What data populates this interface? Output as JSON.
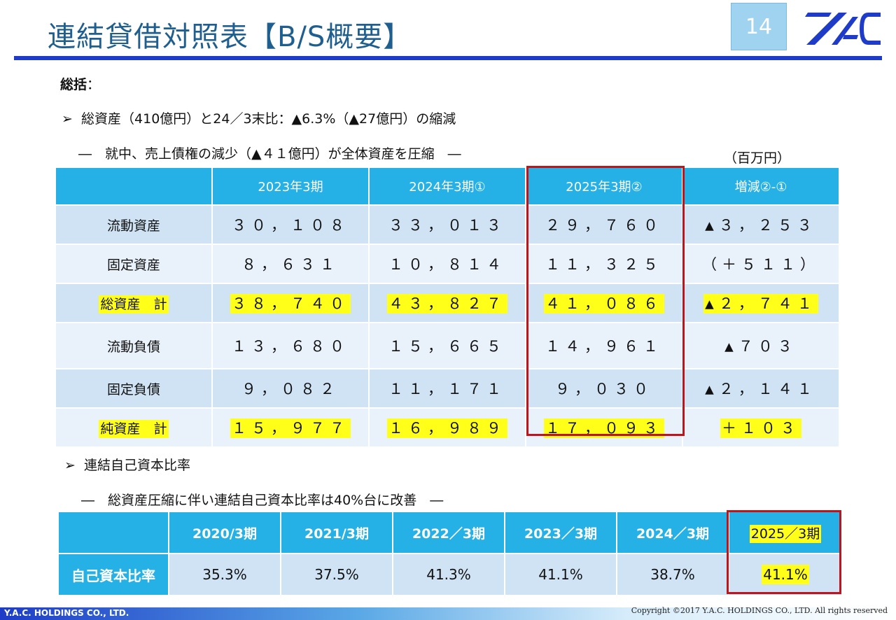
{
  "title": "連結貸借対照表【B/S概要】",
  "page_number": "14",
  "logo_icon": "yac-logo-icon",
  "summary": {
    "heading": "総括",
    "colon": "：",
    "bullet1": "総資産（410億円）と24／3末比：▲6.3%（▲27億円）の縮減",
    "sub1": "―　就中、売上債権の減少（▲４１億円）が全体資産を圧縮　―",
    "unit": "（百万円）"
  },
  "bs_table": {
    "headers": [
      "",
      "2023年3期",
      "2024年3期①",
      "2025年3期②",
      "増減②-①"
    ],
    "rows": [
      {
        "label": "流動資産",
        "values": [
          "３０，１０８",
          "３３，０１３",
          "２９，７６０",
          "▲３，２５３"
        ],
        "highlight": false
      },
      {
        "label": "固定資産",
        "values": [
          "８，６３１",
          "１０，８１４",
          "１１，３２５",
          "（＋５１１）"
        ],
        "highlight": false
      },
      {
        "label": "総資産　計",
        "values": [
          "３８，７４０",
          "４３，８２７",
          "４１，０８６",
          "▲２，７４１"
        ],
        "highlight": true
      },
      {
        "label": "流動負債",
        "values": [
          "１３，６８０",
          "１５，６６５",
          "１４，９６１",
          "▲７０３"
        ],
        "highlight": false
      },
      {
        "label": "固定負債",
        "values": [
          "９，０８２",
          "１１，１７１",
          "９，０３０",
          "▲２，１４１"
        ],
        "highlight": false
      },
      {
        "label": "純資産　計",
        "values": [
          "１５，９７７",
          "１６，９８９",
          "１７，０９３",
          "＋１０３"
        ],
        "highlight": true
      }
    ]
  },
  "ratio_section": {
    "bullet": "連結自己資本比率",
    "sub": "―　総資産圧縮に伴い連結自己資本比率は40%台に改善　―",
    "headers": [
      "",
      "2020/3期",
      "2021/3期",
      "2022／3期",
      "2023／3期",
      "2024／3期",
      "2025／3期"
    ],
    "row_label": "自己資本比率",
    "values": [
      "35.3%",
      "37.5%",
      "41.3%",
      "41.1%",
      "38.7%",
      "41.1%"
    ]
  },
  "footer": {
    "left": "Y.A.C. HOLDINGS CO., LTD.",
    "right": "Copyright ©2017 Y.A.C. HOLDINGS CO., LTD.  All rights reserved"
  },
  "colors": {
    "accent": "#25b0e6",
    "title": "#1f5f8f",
    "rule": "#1e3cc7",
    "highlight": "#ffff1a",
    "box": "#c0141c"
  }
}
